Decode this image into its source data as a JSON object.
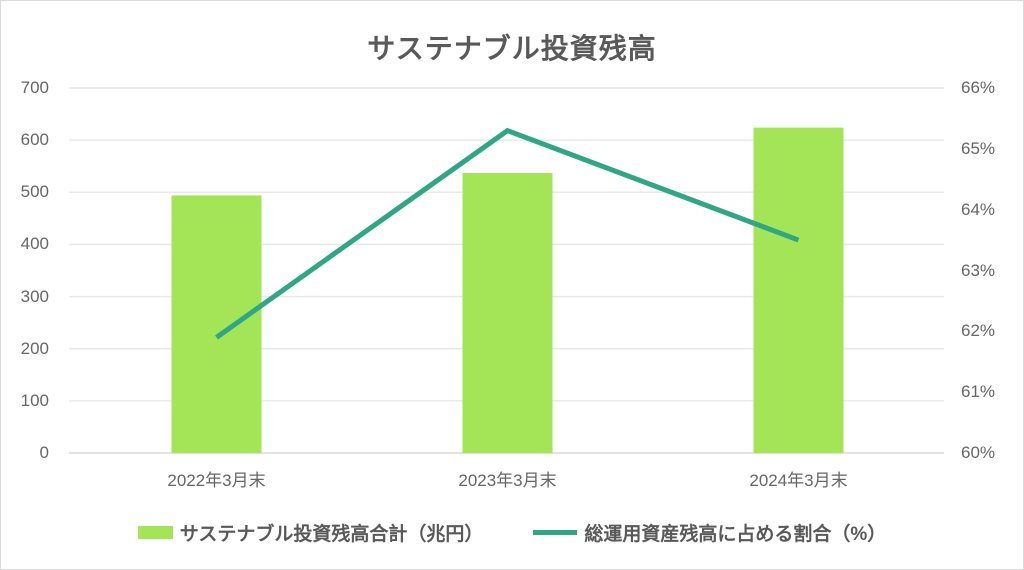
{
  "title": "サステナブル投資残高",
  "colors": {
    "bar": "#A3E556",
    "line": "#31A684",
    "grid": "#E9E9E9",
    "axis_line": "#D9D9D9",
    "frame_border": "#D9D9D9",
    "axis_text": "#666666",
    "title_text": "#595959",
    "legend_text": "#595959",
    "background": "#FFFFFF"
  },
  "chart_data": {
    "type": "bar+line combo",
    "title": "サステナブル投資残高",
    "categories": [
      "2022年3月末",
      "2023年3月末",
      "2024年3月末"
    ],
    "series": [
      {
        "name": "サステナブル投資残高合計（兆円）",
        "type": "bar",
        "axis": "left",
        "values": [
          494,
          537,
          624
        ],
        "color": "#A3E556"
      },
      {
        "name": "総運用資産残高に占める割合（%）",
        "type": "line",
        "axis": "right",
        "values": [
          61.9,
          65.3,
          63.5
        ],
        "color": "#31A684"
      }
    ],
    "left_axis": {
      "min": 0,
      "max": 700,
      "step": 100,
      "tick_labels": [
        "0",
        "100",
        "200",
        "300",
        "400",
        "500",
        "600",
        "700"
      ]
    },
    "right_axis": {
      "min": 60,
      "max": 66,
      "step": 1,
      "tick_labels": [
        "60%",
        "61%",
        "62%",
        "63%",
        "64%",
        "65%",
        "66%"
      ]
    },
    "grid": "horizontal",
    "legend_position": "bottom"
  }
}
